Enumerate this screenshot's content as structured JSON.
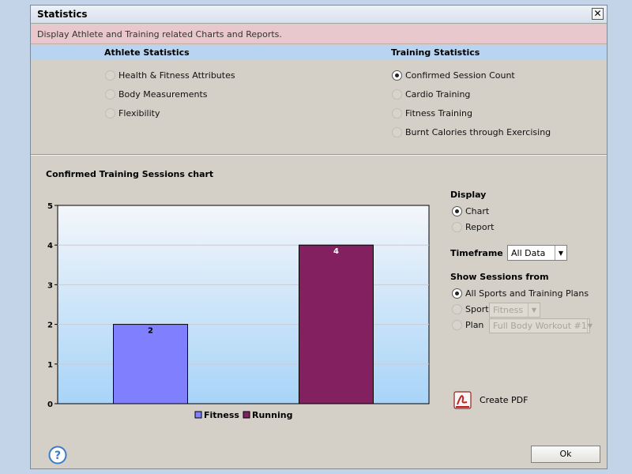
{
  "window": {
    "title": "Statistics",
    "close_symbol": "✕"
  },
  "info": {
    "text": "Display Athlete and Training related Charts and Reports."
  },
  "athlete_statistics": {
    "header": "Athlete Statistics",
    "options": [
      {
        "label": "Health & Fitness Attributes",
        "checked": false
      },
      {
        "label": "Body Measurements",
        "checked": false
      },
      {
        "label": "Flexibility",
        "checked": false
      }
    ]
  },
  "training_statistics": {
    "header": "Training Statistics",
    "options": [
      {
        "label": "Confirmed Session Count",
        "checked": true
      },
      {
        "label": "Cardio Training",
        "checked": false
      },
      {
        "label": "Fitness Training",
        "checked": false
      },
      {
        "label": "Burnt Calories through Exercising",
        "checked": false
      }
    ]
  },
  "chart_section": {
    "title": "Confirmed Training Sessions chart"
  },
  "chart_data": {
    "type": "bar",
    "categories": [
      "Fitness",
      "Running"
    ],
    "values": [
      2,
      4
    ],
    "colors": [
      "#8080ff",
      "#822060"
    ],
    "ylim": [
      0,
      5
    ],
    "yticks": [
      "0",
      "1",
      "2",
      "3",
      "4",
      "5"
    ],
    "legend": [
      "Fitness",
      "Running"
    ],
    "data_labels": [
      "2",
      "4"
    ],
    "legend_position": "bottom",
    "grid": true
  },
  "display": {
    "label": "Display",
    "options": [
      {
        "label": "Chart",
        "checked": true
      },
      {
        "label": "Report",
        "checked": false
      }
    ]
  },
  "timeframe": {
    "label": "Timeframe",
    "value": "All Data"
  },
  "show_sessions": {
    "label": "Show Sessions from",
    "options": [
      {
        "label": "All Sports and Training Plans",
        "checked": true
      },
      {
        "label": "Sport",
        "checked": false
      },
      {
        "label": "Plan",
        "checked": false
      }
    ],
    "sport_value": "Fitness",
    "plan_value": "Full Body Workout #1"
  },
  "create_pdf": {
    "label": "Create PDF"
  },
  "ok_button": {
    "label": "Ok"
  },
  "help": {
    "symbol": "?"
  }
}
